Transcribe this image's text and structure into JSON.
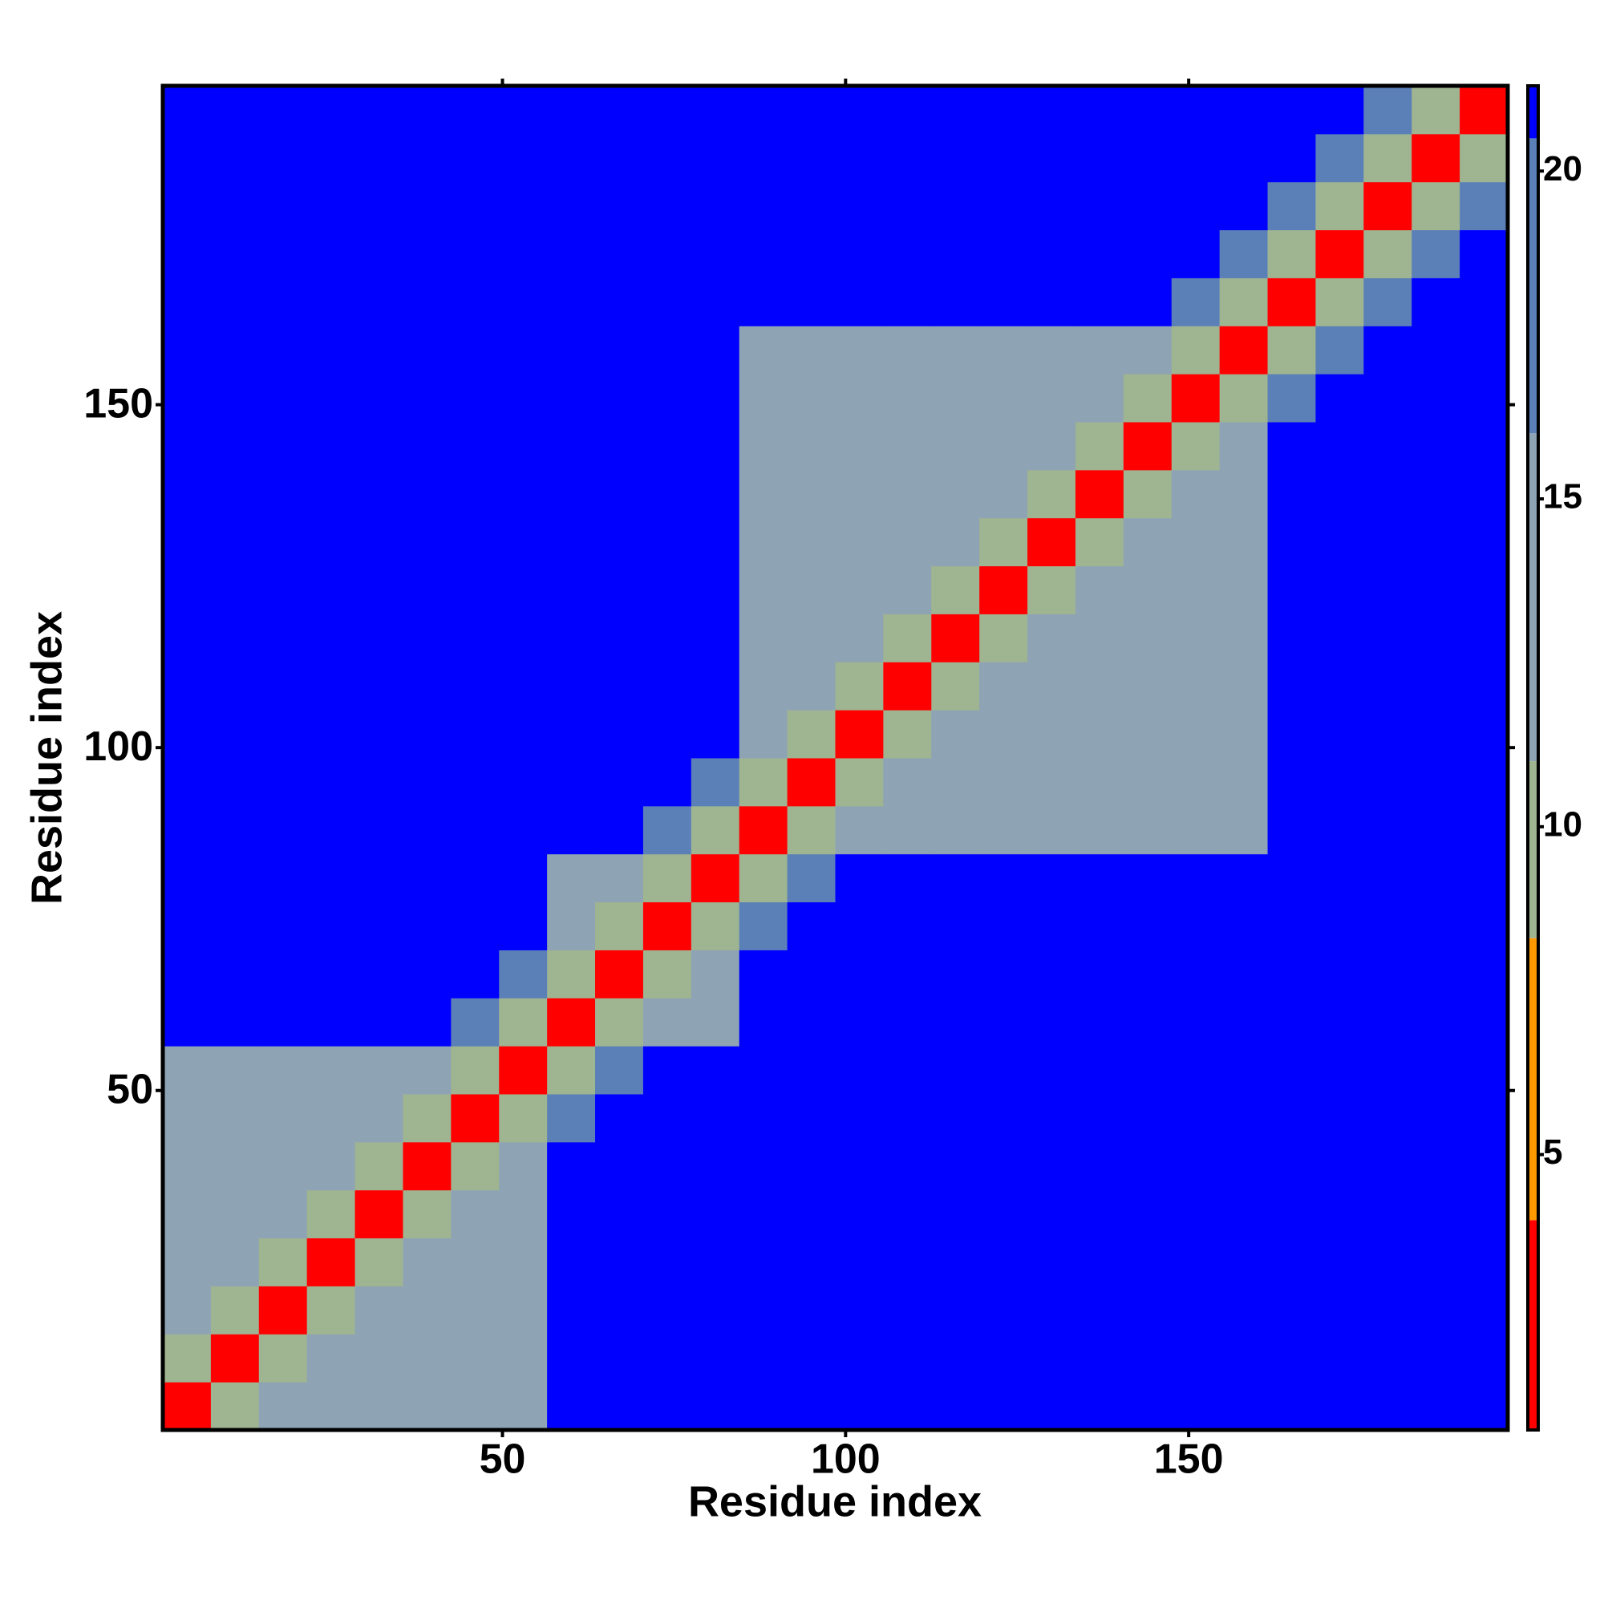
{
  "chart_data": {
    "type": "heatmap",
    "xlabel": "Residue index",
    "ylabel": "Residue index",
    "x": [
      4,
      11,
      18,
      25,
      32,
      39,
      46,
      53,
      60,
      67,
      74,
      81,
      88,
      95,
      102,
      109,
      116,
      123,
      130,
      137,
      144,
      151,
      158,
      165,
      172,
      179,
      186,
      193
    ],
    "y": [
      4,
      11,
      18,
      25,
      32,
      39,
      46,
      53,
      60,
      67,
      74,
      81,
      88,
      95,
      102,
      109,
      116,
      123,
      130,
      137,
      144,
      151,
      158,
      165,
      172,
      179,
      186,
      193
    ],
    "xlim": [
      0.5,
      196.5
    ],
    "ylim": [
      0.5,
      196.5
    ],
    "xticks": [
      50,
      100,
      150
    ],
    "yticks": [
      50,
      100,
      150
    ],
    "z": [
      [
        3,
        10,
        14,
        15,
        12,
        13,
        14,
        15,
        21,
        21,
        21,
        21,
        21,
        21,
        21,
        21,
        21,
        21,
        21,
        21,
        21,
        21,
        21,
        21,
        21,
        21,
        21,
        21
      ],
      [
        10,
        3,
        10,
        12,
        13,
        14,
        15,
        12,
        21,
        21,
        21,
        21,
        21,
        21,
        21,
        21,
        21,
        21,
        21,
        21,
        21,
        21,
        21,
        21,
        21,
        21,
        21,
        21
      ],
      [
        14,
        10,
        3,
        10,
        14,
        15,
        12,
        13,
        21,
        21,
        21,
        21,
        21,
        21,
        21,
        21,
        21,
        21,
        21,
        21,
        21,
        21,
        21,
        21,
        21,
        21,
        21,
        21
      ],
      [
        15,
        12,
        10,
        3,
        10,
        12,
        13,
        14,
        21,
        21,
        21,
        21,
        21,
        21,
        21,
        21,
        21,
        21,
        21,
        21,
        21,
        21,
        21,
        21,
        21,
        21,
        21,
        21
      ],
      [
        12,
        13,
        14,
        10,
        3,
        10,
        14,
        15,
        21,
        21,
        21,
        21,
        21,
        21,
        21,
        21,
        21,
        21,
        21,
        21,
        21,
        21,
        21,
        21,
        21,
        21,
        21,
        21
      ],
      [
        13,
        14,
        15,
        12,
        10,
        3,
        10,
        12,
        21,
        21,
        21,
        21,
        21,
        21,
        21,
        21,
        21,
        21,
        21,
        21,
        21,
        21,
        21,
        21,
        21,
        21,
        21,
        21
      ],
      [
        14,
        15,
        12,
        13,
        14,
        10,
        3,
        10,
        18,
        21,
        21,
        21,
        21,
        21,
        21,
        21,
        21,
        21,
        21,
        21,
        21,
        21,
        21,
        21,
        21,
        21,
        21,
        21
      ],
      [
        15,
        12,
        13,
        14,
        15,
        12,
        10,
        3,
        10,
        18,
        21,
        21,
        21,
        21,
        21,
        21,
        21,
        21,
        21,
        21,
        21,
        21,
        21,
        21,
        21,
        21,
        21,
        21
      ],
      [
        21,
        21,
        21,
        21,
        21,
        21,
        18,
        10,
        3,
        10,
        14,
        15,
        21,
        21,
        21,
        21,
        21,
        21,
        21,
        21,
        21,
        21,
        21,
        21,
        21,
        21,
        21,
        21
      ],
      [
        21,
        21,
        21,
        21,
        21,
        21,
        21,
        18,
        10,
        3,
        10,
        12,
        21,
        21,
        21,
        21,
        21,
        21,
        21,
        21,
        21,
        21,
        21,
        21,
        21,
        21,
        21,
        21
      ],
      [
        21,
        21,
        21,
        21,
        21,
        21,
        21,
        21,
        14,
        10,
        3,
        10,
        18,
        21,
        21,
        21,
        21,
        21,
        21,
        21,
        21,
        21,
        21,
        21,
        21,
        21,
        21,
        21
      ],
      [
        21,
        21,
        21,
        21,
        21,
        21,
        21,
        21,
        15,
        12,
        10,
        3,
        10,
        18,
        21,
        21,
        21,
        21,
        21,
        21,
        21,
        21,
        21,
        21,
        21,
        21,
        21,
        21
      ],
      [
        21,
        21,
        21,
        21,
        21,
        21,
        21,
        21,
        21,
        21,
        18,
        10,
        3,
        10,
        14,
        15,
        12,
        13,
        14,
        15,
        12,
        13,
        14,
        21,
        21,
        21,
        21,
        21
      ],
      [
        21,
        21,
        21,
        21,
        21,
        21,
        21,
        21,
        21,
        21,
        21,
        18,
        10,
        3,
        10,
        12,
        13,
        14,
        15,
        12,
        13,
        14,
        15,
        21,
        21,
        21,
        21,
        21
      ],
      [
        21,
        21,
        21,
        21,
        21,
        21,
        21,
        21,
        21,
        21,
        21,
        21,
        14,
        10,
        3,
        10,
        14,
        15,
        12,
        13,
        14,
        15,
        12,
        21,
        21,
        21,
        21,
        21
      ],
      [
        21,
        21,
        21,
        21,
        21,
        21,
        21,
        21,
        21,
        21,
        21,
        21,
        15,
        12,
        10,
        3,
        10,
        12,
        13,
        14,
        15,
        12,
        13,
        21,
        21,
        21,
        21,
        21
      ],
      [
        21,
        21,
        21,
        21,
        21,
        21,
        21,
        21,
        21,
        21,
        21,
        21,
        12,
        13,
        14,
        10,
        3,
        10,
        14,
        15,
        12,
        13,
        14,
        21,
        21,
        21,
        21,
        21
      ],
      [
        21,
        21,
        21,
        21,
        21,
        21,
        21,
        21,
        21,
        21,
        21,
        21,
        13,
        14,
        15,
        12,
        10,
        3,
        10,
        12,
        13,
        14,
        15,
        21,
        21,
        21,
        21,
        21
      ],
      [
        21,
        21,
        21,
        21,
        21,
        21,
        21,
        21,
        21,
        21,
        21,
        21,
        14,
        15,
        12,
        13,
        14,
        10,
        3,
        10,
        14,
        15,
        12,
        21,
        21,
        21,
        21,
        21
      ],
      [
        21,
        21,
        21,
        21,
        21,
        21,
        21,
        21,
        21,
        21,
        21,
        21,
        15,
        12,
        13,
        14,
        15,
        12,
        10,
        3,
        10,
        12,
        13,
        21,
        21,
        21,
        21,
        21
      ],
      [
        21,
        21,
        21,
        21,
        21,
        21,
        21,
        21,
        21,
        21,
        21,
        21,
        12,
        13,
        14,
        15,
        12,
        13,
        14,
        10,
        3,
        10,
        14,
        21,
        21,
        21,
        21,
        21
      ],
      [
        21,
        21,
        21,
        21,
        21,
        21,
        21,
        21,
        21,
        21,
        21,
        21,
        13,
        14,
        15,
        12,
        13,
        14,
        15,
        12,
        10,
        3,
        10,
        18,
        21,
        21,
        21,
        21
      ],
      [
        21,
        21,
        21,
        21,
        21,
        21,
        21,
        21,
        21,
        21,
        21,
        21,
        14,
        15,
        12,
        13,
        14,
        15,
        12,
        13,
        14,
        10,
        3,
        10,
        18,
        21,
        21,
        21
      ],
      [
        21,
        21,
        21,
        21,
        21,
        21,
        21,
        21,
        21,
        21,
        21,
        21,
        21,
        21,
        21,
        21,
        21,
        21,
        21,
        21,
        21,
        18,
        10,
        3,
        10,
        18,
        21,
        21
      ],
      [
        21,
        21,
        21,
        21,
        21,
        21,
        21,
        21,
        21,
        21,
        21,
        21,
        21,
        21,
        21,
        21,
        21,
        21,
        21,
        21,
        21,
        21,
        18,
        10,
        3,
        10,
        18,
        21
      ],
      [
        21,
        21,
        21,
        21,
        21,
        21,
        21,
        21,
        21,
        21,
        21,
        21,
        21,
        21,
        21,
        21,
        21,
        21,
        21,
        21,
        21,
        21,
        21,
        18,
        10,
        3,
        10,
        18
      ],
      [
        21,
        21,
        21,
        21,
        21,
        21,
        21,
        21,
        21,
        21,
        21,
        21,
        21,
        21,
        21,
        21,
        21,
        21,
        21,
        21,
        21,
        21,
        21,
        21,
        18,
        10,
        3,
        10
      ],
      [
        21,
        21,
        21,
        21,
        21,
        21,
        21,
        21,
        21,
        21,
        21,
        21,
        21,
        21,
        21,
        21,
        21,
        21,
        21,
        21,
        21,
        21,
        21,
        21,
        21,
        18,
        10,
        3
      ]
    ],
    "colorbar": {
      "lim": [
        0.8,
        21.3
      ],
      "ticks": [
        5,
        10,
        15,
        20
      ],
      "breaks": [
        0.8,
        4,
        8.3,
        11,
        16,
        20.5,
        21.3
      ],
      "colors": [
        "#ff0000",
        "#ff9900",
        "#9fb490",
        "#8ea4b4",
        "#5b80b8",
        "#0000ff"
      ]
    }
  }
}
